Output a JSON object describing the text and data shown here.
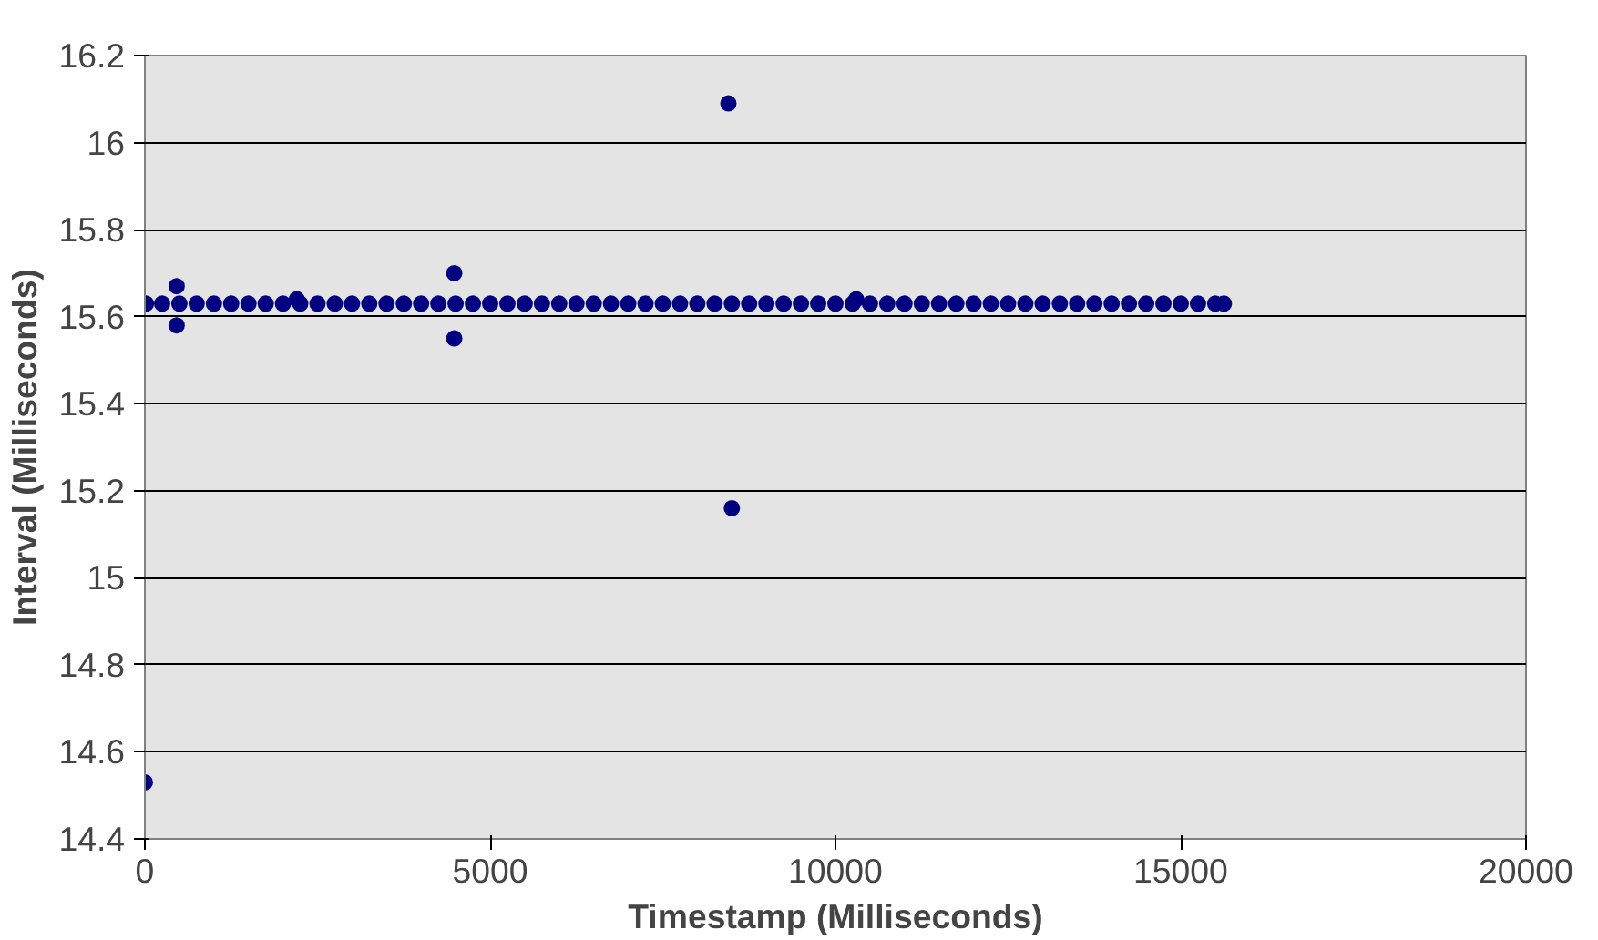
{
  "chart_data": {
    "type": "scatter",
    "xlabel": "Timestamp (Milliseconds)",
    "ylabel": "Interval (Milliseconds)",
    "x": [
      16,
      250,
      500,
      750,
      1000,
      1250,
      1500,
      1750,
      2000,
      2250,
      2500,
      2750,
      3000,
      3250,
      3500,
      3750,
      4000,
      4250,
      4500,
      4750,
      5000,
      5250,
      5500,
      5750,
      6000,
      6250,
      6500,
      6750,
      7000,
      7250,
      7500,
      7750,
      8000,
      8250,
      8500,
      8750,
      9000,
      9250,
      9500,
      9750,
      10000,
      10250,
      10500,
      10750,
      11000,
      11250,
      11500,
      11750,
      12000,
      12250,
      12500,
      12750,
      13000,
      13250,
      13500,
      13750,
      14000,
      14250,
      14500,
      14750,
      15000,
      15250,
      15500,
      15625,
      0,
      460,
      460,
      4480,
      4480,
      8450,
      8500,
      2200,
      10300
    ],
    "values": [
      15.63,
      15.63,
      15.63,
      15.63,
      15.63,
      15.63,
      15.63,
      15.63,
      15.63,
      15.63,
      15.63,
      15.63,
      15.63,
      15.63,
      15.63,
      15.63,
      15.63,
      15.63,
      15.63,
      15.63,
      15.63,
      15.63,
      15.63,
      15.63,
      15.63,
      15.63,
      15.63,
      15.63,
      15.63,
      15.63,
      15.63,
      15.63,
      15.63,
      15.63,
      15.63,
      15.63,
      15.63,
      15.63,
      15.63,
      15.63,
      15.63,
      15.63,
      15.63,
      15.63,
      15.63,
      15.63,
      15.63,
      15.63,
      15.63,
      15.63,
      15.63,
      15.63,
      15.63,
      15.63,
      15.63,
      15.63,
      15.63,
      15.63,
      15.63,
      15.63,
      15.63,
      15.63,
      15.63,
      15.63,
      14.53,
      15.67,
      15.58,
      15.7,
      15.55,
      16.09,
      15.16,
      15.64,
      15.64
    ],
    "color": "#000080",
    "marker": "circle",
    "grid": "y",
    "xlim": [
      0,
      20000
    ],
    "xticks": [
      0,
      5000,
      10000,
      15000,
      20000
    ],
    "ylim": [
      14.4,
      16.2
    ],
    "yticks": [
      14.4,
      14.6,
      14.8,
      15,
      15.2,
      15.4,
      15.6,
      15.8,
      16,
      16.2
    ]
  }
}
